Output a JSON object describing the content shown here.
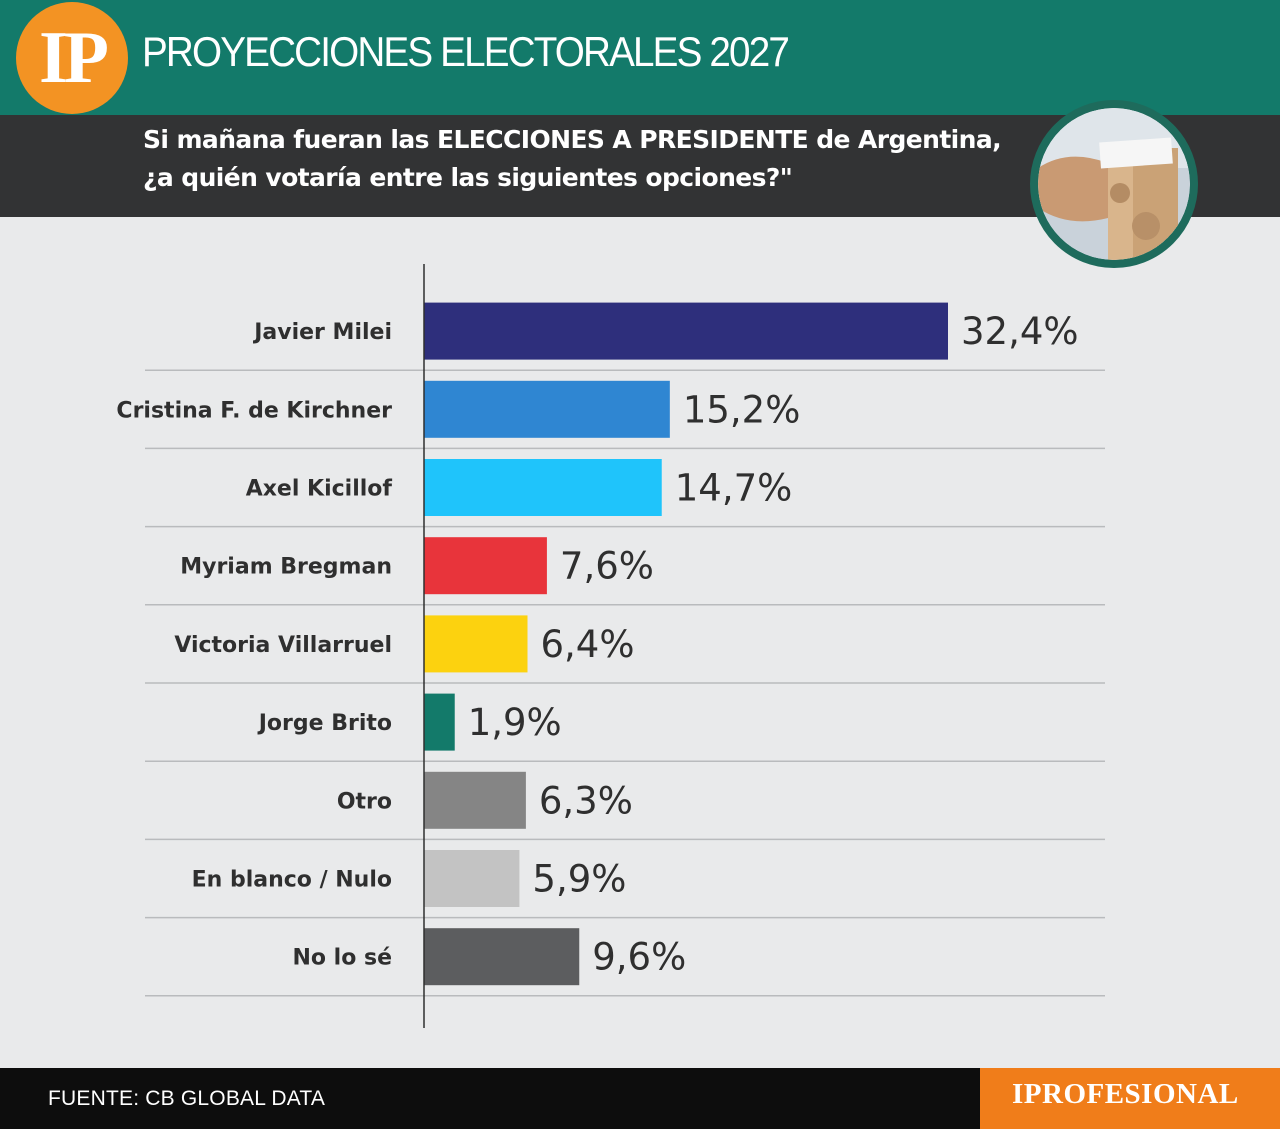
{
  "header": {
    "logo_text": "IP",
    "title": "PROYECCIONES ELECTORALES 2027",
    "question_line1": "Si mañana fueran las ELECCIONES A PRESIDENTE de Argentina,",
    "question_line2": "¿a quién votaría entre las siguientes opciones?\""
  },
  "footer": {
    "source": "FUENTE: CB GLOBAL DATA",
    "brand": "IPROFESIONAL"
  },
  "colors": {
    "header_green": "#137a6a",
    "question_bg": "#323334",
    "logo_orange": "#f39323",
    "brand_orange": "#f07d1a",
    "background": "#e9eaeb"
  },
  "chart_data": {
    "type": "bar",
    "orientation": "horizontal",
    "categories": [
      "Javier Milei",
      "Cristina F. de Kirchner",
      "Axel Kicillof",
      "Myriam Bregman",
      "Victoria Villarruel",
      "Jorge Brito",
      "Otro",
      "En blanco / Nulo",
      "No lo sé"
    ],
    "values": [
      32.4,
      15.2,
      14.7,
      7.6,
      6.4,
      1.9,
      6.3,
      5.9,
      9.6
    ],
    "value_labels": [
      "32,4%",
      "15,2%",
      "14,7%",
      "7,6%",
      "6,4%",
      "1,9%",
      "6,3%",
      "5,9%",
      "9,6%"
    ],
    "colors": [
      "#2e2f7c",
      "#2f86d2",
      "#1fc4fb",
      "#e8343b",
      "#fcd20f",
      "#137a6a",
      "#858585",
      "#c3c3c3",
      "#5c5d5f"
    ],
    "unit": "%",
    "grid": false
  }
}
